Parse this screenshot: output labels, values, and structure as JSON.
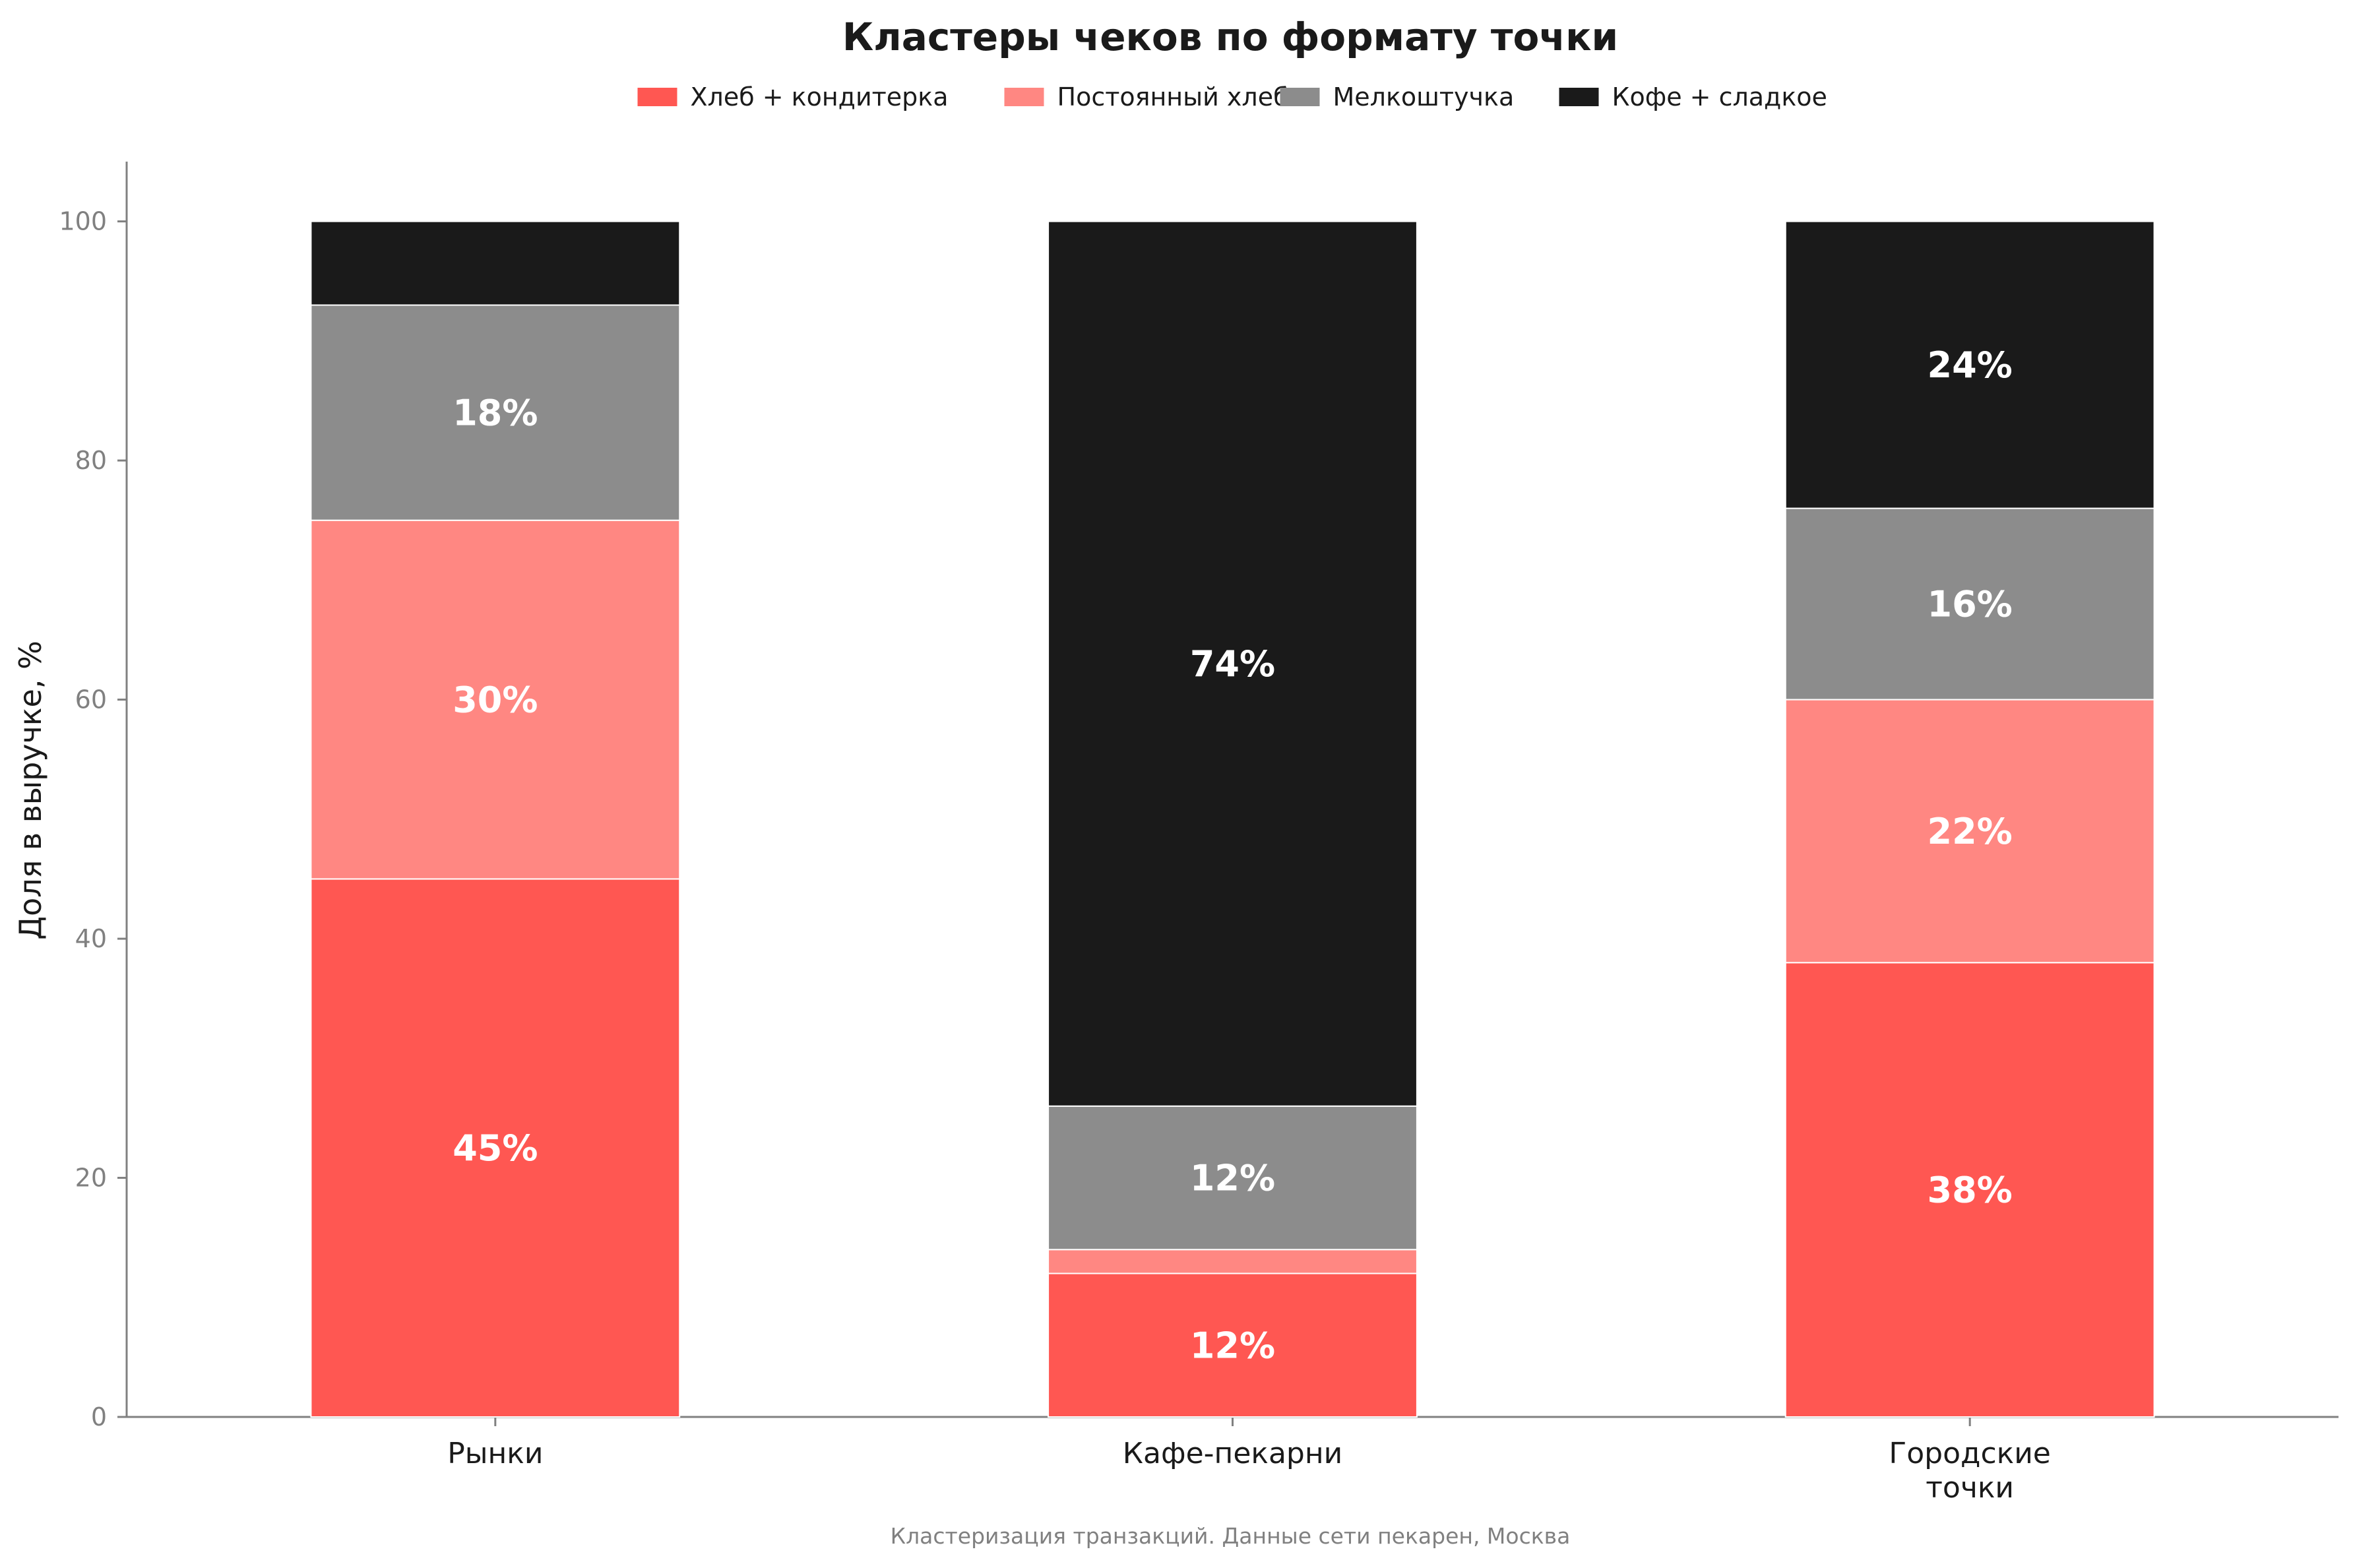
{
  "chart_data": {
    "type": "bar",
    "stacked": true,
    "title": "Кластеры чеков по формату точки",
    "xlabel": "",
    "ylabel": "Доля в выручке, %",
    "ylim": [
      0,
      105
    ],
    "yticks": [
      0,
      20,
      40,
      60,
      80,
      100
    ],
    "categories": [
      "Рынки",
      "Кафе-пекарни",
      "Городские\nточки"
    ],
    "series": [
      {
        "name": "Хлеб + кондитерка",
        "color": "#ff5752",
        "values": [
          45,
          12,
          38
        ],
        "labels": [
          "45%",
          "12%",
          "38%"
        ]
      },
      {
        "name": "Постоянный хлеб",
        "color": "#ff8782",
        "values": [
          30,
          2,
          22
        ],
        "labels": [
          "30%",
          "",
          "22%"
        ]
      },
      {
        "name": "Мелкоштучка",
        "color": "#8c8c8c",
        "values": [
          18,
          12,
          16
        ],
        "labels": [
          "18%",
          "12%",
          "16%"
        ]
      },
      {
        "name": "Кофе + сладкое",
        "color": "#1a1a1a",
        "values": [
          7,
          74,
          24
        ],
        "labels": [
          "",
          "74%",
          "24%"
        ]
      }
    ],
    "legend": "top-center",
    "grid": false,
    "note": "Кластеризация транзакций. Данные сети пекарен, Москва"
  }
}
